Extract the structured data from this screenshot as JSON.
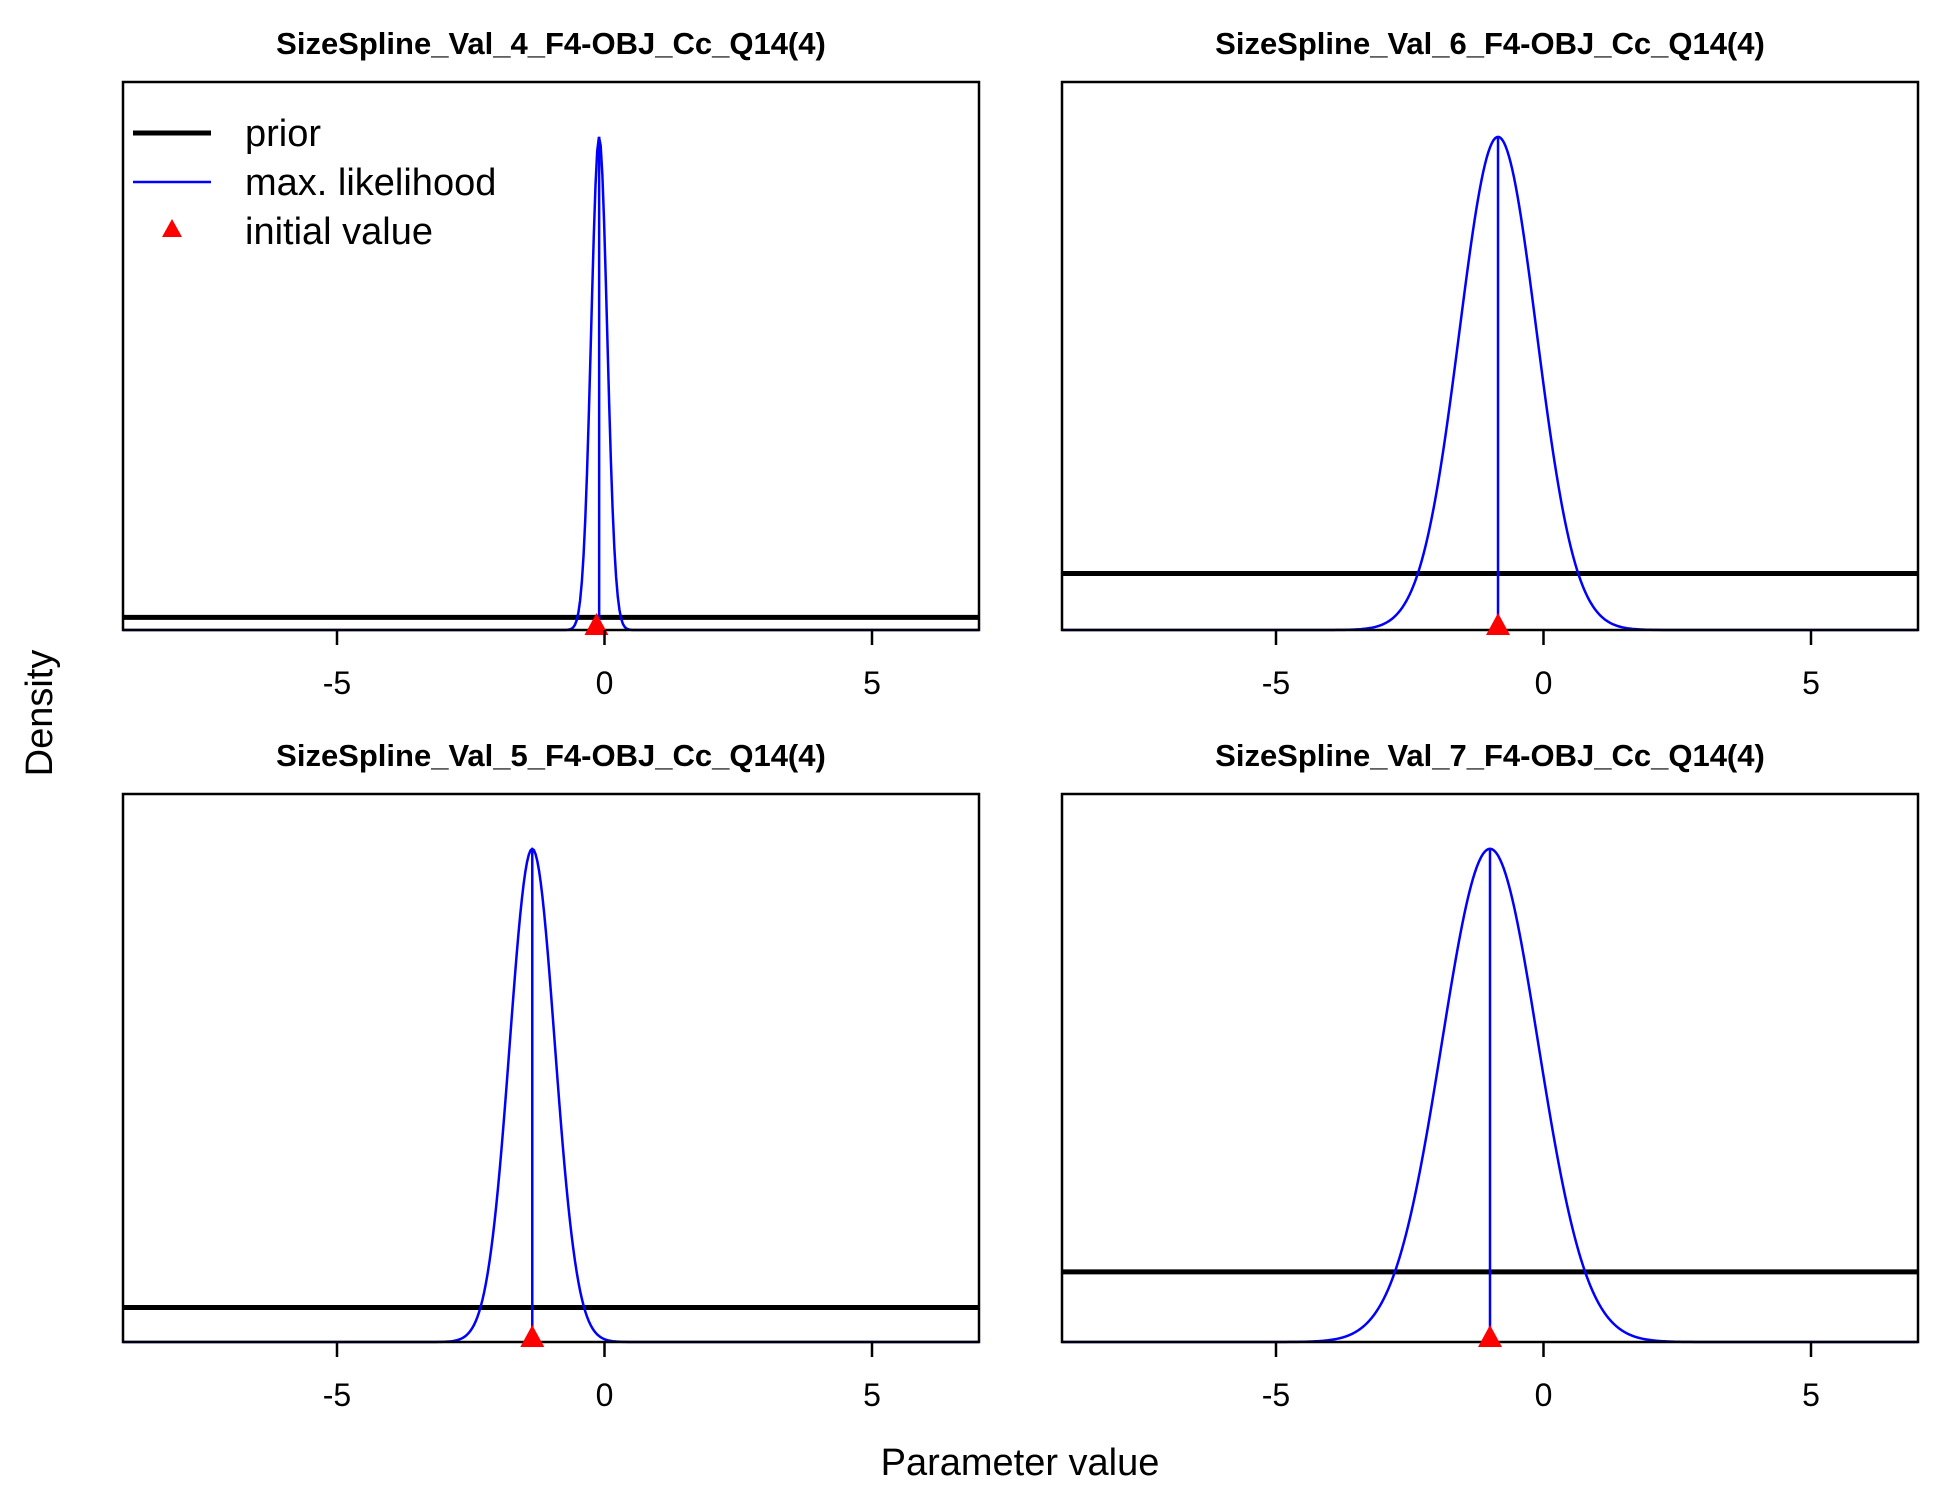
{
  "figure": {
    "xlabel": "Parameter value",
    "ylabel": "Density"
  },
  "legend": {
    "placement": "top-left of first panel",
    "items": [
      {
        "label": "prior",
        "style": "thick-line",
        "color": "#000000"
      },
      {
        "label": "max. likelihood",
        "style": "thin-line",
        "color": "#0000ff"
      },
      {
        "label": "initial value",
        "style": "triangle",
        "color": "#ff0000"
      }
    ]
  },
  "chart_data": [
    {
      "type": "line",
      "title": "SizeSpline_Val_4_F4-OBJ_Cc_Q14(4)",
      "xlim": [
        -9,
        7
      ],
      "xticks": [
        -5,
        0,
        5
      ],
      "xtick_labels": [
        "-5",
        "0",
        "5"
      ],
      "y_axis_ticks_shown": false,
      "series": [
        {
          "name": "prior",
          "kind": "uniform",
          "relative_height": 0.023
        },
        {
          "name": "max. likelihood",
          "kind": "normal",
          "mean": -0.1,
          "sd": 0.15,
          "relative_peak": 0.9
        }
      ],
      "mle_line_x": -0.1,
      "initial_value": -0.15
    },
    {
      "type": "line",
      "title": "SizeSpline_Val_6_F4-OBJ_Cc_Q14(4)",
      "xlim": [
        -9,
        7
      ],
      "xticks": [
        -5,
        0,
        5
      ],
      "xtick_labels": [
        "-5",
        "0",
        "5"
      ],
      "y_axis_ticks_shown": false,
      "series": [
        {
          "name": "prior",
          "kind": "uniform",
          "relative_height": 0.103
        },
        {
          "name": "max. likelihood",
          "kind": "normal",
          "mean": -0.85,
          "sd": 0.72,
          "relative_peak": 0.9
        }
      ],
      "mle_line_x": -0.85,
      "initial_value": -0.85
    },
    {
      "type": "line",
      "title": "SizeSpline_Val_5_F4-OBJ_Cc_Q14(4)",
      "xlim": [
        -9,
        7
      ],
      "xticks": [
        -5,
        0,
        5
      ],
      "xtick_labels": [
        "-5",
        "0",
        "5"
      ],
      "y_axis_ticks_shown": false,
      "series": [
        {
          "name": "prior",
          "kind": "uniform",
          "relative_height": 0.063
        },
        {
          "name": "max. likelihood",
          "kind": "normal",
          "mean": -1.35,
          "sd": 0.42,
          "relative_peak": 0.9
        }
      ],
      "mle_line_x": -1.35,
      "initial_value": -1.35
    },
    {
      "type": "line",
      "title": "SizeSpline_Val_7_F4-OBJ_Cc_Q14(4)",
      "xlim": [
        -9,
        7
      ],
      "xticks": [
        -5,
        0,
        5
      ],
      "xtick_labels": [
        "-5",
        "0",
        "5"
      ],
      "y_axis_ticks_shown": false,
      "series": [
        {
          "name": "prior",
          "kind": "uniform",
          "relative_height": 0.128
        },
        {
          "name": "max. likelihood",
          "kind": "normal",
          "mean": -1.0,
          "sd": 0.9,
          "relative_peak": 0.9
        }
      ],
      "mle_line_x": -1.0,
      "initial_value": -1.0
    }
  ]
}
